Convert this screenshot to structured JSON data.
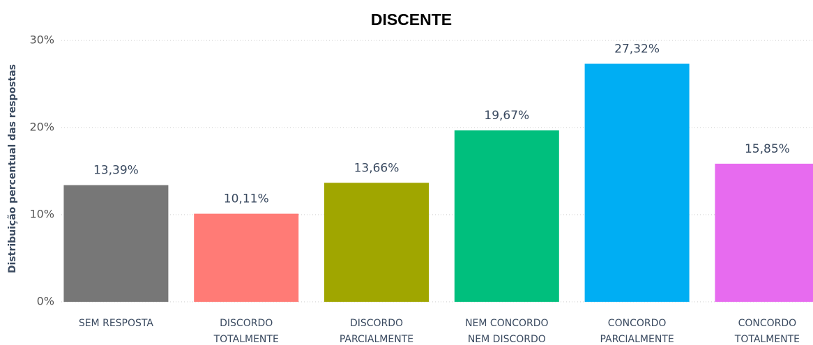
{
  "chart_data": {
    "type": "bar",
    "title": "DISCENTE",
    "y_label": "Distribuição percentual das respostas",
    "categories": [
      [
        "SEM RESPOSTA"
      ],
      [
        "DISCORDO",
        "TOTALMENTE"
      ],
      [
        "DISCORDO",
        "PARCIALMENTE"
      ],
      [
        "NEM CONCORDO",
        "NEM DISCORDO"
      ],
      [
        "CONCORDO",
        "PARCIALMENTE"
      ],
      [
        "CONCORDO",
        "TOTALMENTE"
      ]
    ],
    "values": [
      13.39,
      10.11,
      13.66,
      19.67,
      27.32,
      15.85
    ],
    "value_labels": [
      "13,39%",
      "10,11%",
      "13,66%",
      "19,67%",
      "27,32%",
      "15,85%"
    ],
    "colors": [
      "#777777",
      "#ff7b76",
      "#a0a600",
      "#00bf7d",
      "#00aef3",
      "#e76bef"
    ],
    "ylim": [
      0,
      30
    ],
    "yticks": [
      {
        "value": 0,
        "label": "0%"
      },
      {
        "value": 10,
        "label": "10%"
      },
      {
        "value": 20,
        "label": "20%"
      },
      {
        "value": 30,
        "label": "30%"
      }
    ],
    "grid": true
  }
}
